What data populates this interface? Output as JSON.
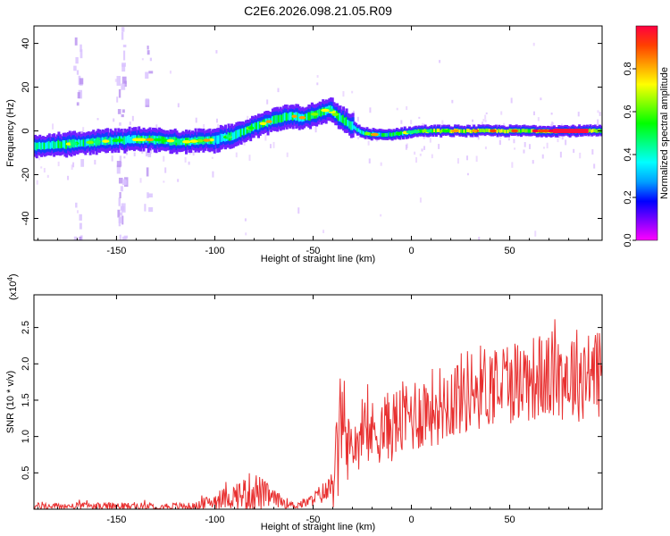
{
  "title": "C2E6.2026.098.21.05.R09",
  "chart_data": [
    {
      "type": "heatmap",
      "name": "spectrogram",
      "xlabel": "Height of straight line (km)",
      "ylabel": "Frequency (Hz)",
      "xlim": [
        -192,
        97
      ],
      "ylim": [
        -50,
        48
      ],
      "xticks": [
        -150,
        -100,
        -50,
        0,
        50
      ],
      "yticks": [
        -40,
        -20,
        0,
        20,
        40
      ],
      "colorbar": {
        "label": "Normalized spectral amplitude",
        "range": [
          0,
          1
        ],
        "ticks": [
          "0.0",
          "0.2",
          "0.4",
          "0.6",
          "0.8"
        ],
        "colors": [
          "#ff00ff",
          "#8000ff",
          "#0000ff",
          "#00a0ff",
          "#00ffff",
          "#00ff80",
          "#00ff00",
          "#80ff00",
          "#ffff00",
          "#ffa000",
          "#ff4000",
          "#ff0040"
        ]
      },
      "ridge": {
        "x": [
          -192,
          -175,
          -160,
          -145,
          -130,
          -115,
          -100,
          -90,
          -80,
          -70,
          -62,
          -55,
          -48,
          -42,
          -38,
          -32,
          -25,
          -15,
          -5,
          5,
          20,
          40,
          60,
          80,
          97
        ],
        "y": [
          -7,
          -6,
          -5,
          -4,
          -4,
          -5,
          -4,
          -2,
          2,
          5,
          7,
          6,
          8,
          10,
          7,
          3,
          -1,
          -2,
          -1,
          0,
          0,
          0,
          0,
          0,
          0
        ]
      }
    },
    {
      "type": "line",
      "name": "snr",
      "xlabel": "Height of straight line (km)",
      "ylabel": "SNR (10 * v/v)",
      "multiplier": "(x10",
      "multiplier_exp": "4",
      "multiplier_close": ")",
      "xlim": [
        -192,
        97
      ],
      "ylim": [
        0,
        2.95
      ],
      "xticks": [
        -150,
        -100,
        -50,
        0,
        50
      ],
      "yticks": [
        "0.5",
        "1.0",
        "1.5",
        "2.0",
        "2.5"
      ],
      "color": "#e83030",
      "envelope": {
        "x": [
          -192,
          -110,
          -100,
          -90,
          -80,
          -70,
          -60,
          -52,
          -47,
          -42,
          -37,
          -35,
          -30,
          -20,
          -10,
          0,
          15,
          30,
          45,
          60,
          80,
          97
        ],
        "base": [
          0.04,
          0.04,
          0.12,
          0.18,
          0.25,
          0.15,
          0.05,
          0.1,
          0.2,
          0.25,
          0.7,
          0.8,
          0.9,
          1.05,
          1.15,
          1.3,
          1.45,
          1.65,
          1.75,
          1.8,
          1.85,
          1.9
        ],
        "amp": [
          0.05,
          0.05,
          0.12,
          0.18,
          0.3,
          0.12,
          0.05,
          0.08,
          0.12,
          0.2,
          0.8,
          0.5,
          0.4,
          0.45,
          0.5,
          0.55,
          0.55,
          0.6,
          0.6,
          0.6,
          0.65,
          0.7
        ]
      }
    }
  ]
}
